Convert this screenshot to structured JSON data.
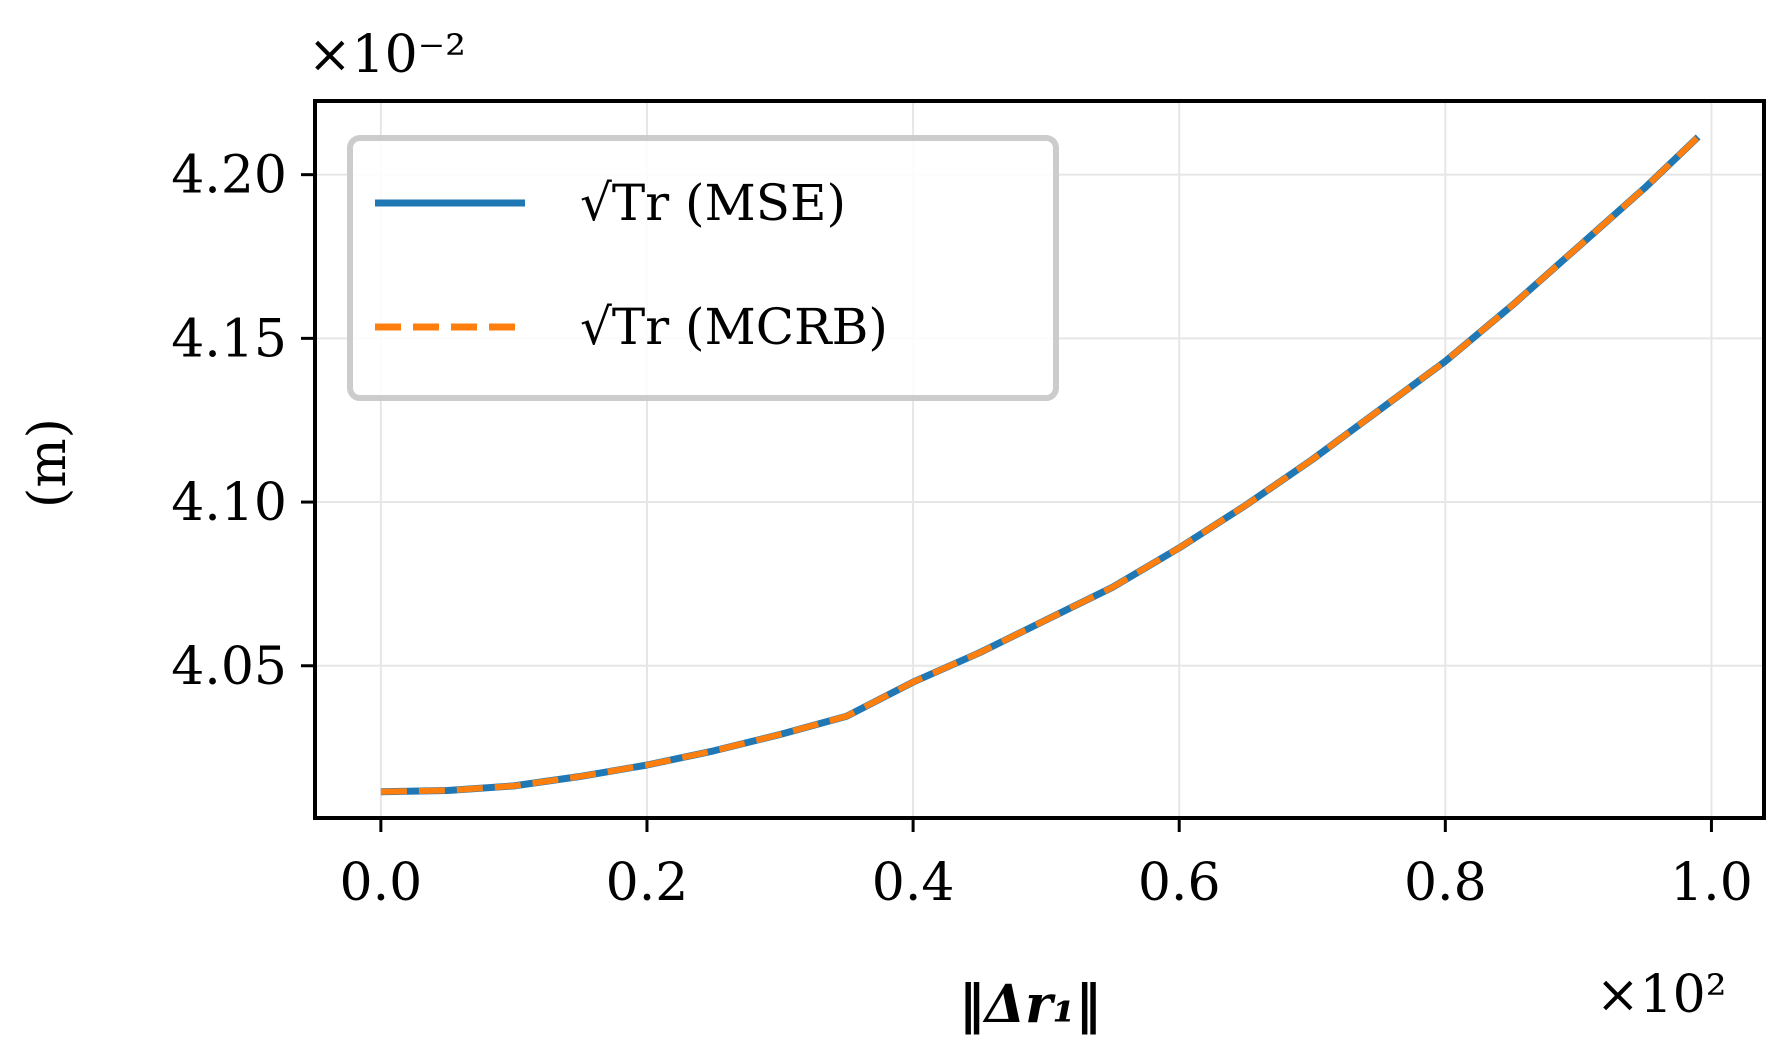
{
  "chart_data": {
    "type": "line",
    "xlabel": "‖Δr₁‖",
    "ylabel": "(m)",
    "x_multiplier": "×10²",
    "y_multiplier": "×10⁻²",
    "xlim": [
      -0.0495,
      1.0395
    ],
    "ylim": [
      4.0035,
      4.2225
    ],
    "xticks": [
      0.0,
      0.2,
      0.4,
      0.6,
      0.8,
      1.0
    ],
    "xtick_labels": [
      "0.0",
      "0.2",
      "0.4",
      "0.6",
      "0.8",
      "1.0"
    ],
    "yticks": [
      4.05,
      4.1,
      4.15,
      4.2
    ],
    "ytick_labels": [
      "4.05",
      "4.10",
      "4.15",
      "4.20"
    ],
    "grid": true,
    "legend_position": "top-left",
    "x": [
      0.0,
      0.05,
      0.1,
      0.15,
      0.2,
      0.25,
      0.3,
      0.35,
      0.4,
      0.45,
      0.5,
      0.55,
      0.6,
      0.65,
      0.7,
      0.75,
      0.8,
      0.85,
      0.9,
      0.95,
      0.99
    ],
    "series": [
      {
        "name": "√Tr (MSE)",
        "color": "#1f77b4",
        "style": "solid",
        "values": [
          4.0115,
          4.0119,
          4.0133,
          4.0162,
          4.0197,
          4.024,
          4.029,
          4.0346,
          4.045,
          4.054,
          4.064,
          4.074,
          4.086,
          4.099,
          4.113,
          4.128,
          4.143,
          4.16,
          4.178,
          4.196,
          4.2115
        ]
      },
      {
        "name": "√Tr (MCRB)",
        "color": "#ff7f0e",
        "style": "dashed",
        "values": [
          4.0115,
          4.0119,
          4.0133,
          4.0162,
          4.0197,
          4.024,
          4.029,
          4.0346,
          4.045,
          4.054,
          4.064,
          4.074,
          4.086,
          4.099,
          4.113,
          4.128,
          4.143,
          4.16,
          4.178,
          4.196,
          4.2115
        ]
      }
    ]
  }
}
